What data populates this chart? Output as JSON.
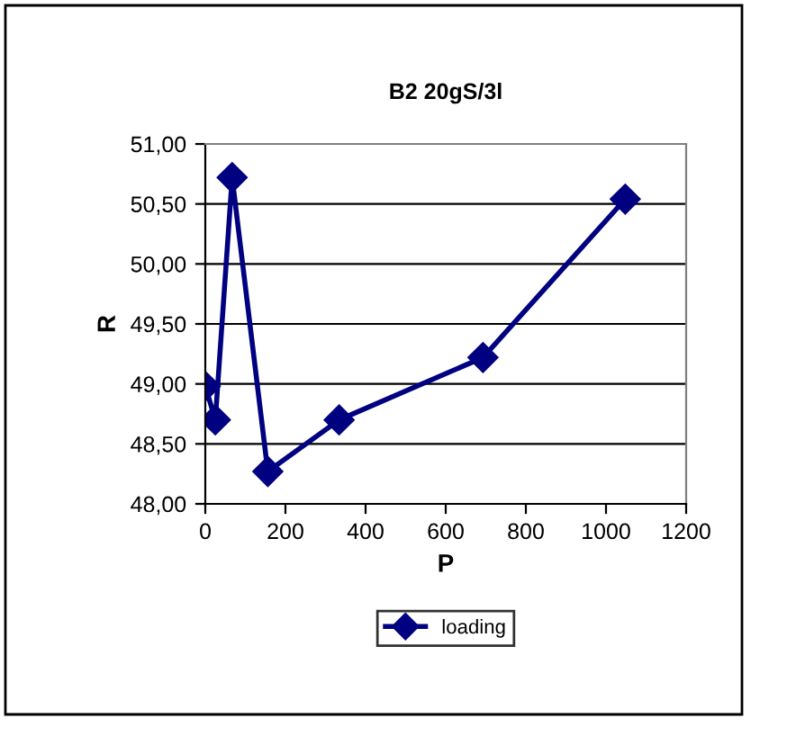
{
  "chart_data": {
    "type": "line",
    "title": "B2 20gS/3l",
    "xlabel": "P",
    "ylabel": "R",
    "series": [
      {
        "name": "loading",
        "color": "#000080",
        "x": [
          0,
          25,
          67,
          156,
          334,
          693,
          1048
        ],
        "values": [
          48.98,
          48.7,
          50.72,
          48.27,
          48.7,
          49.22,
          50.54
        ]
      }
    ],
    "xlim": [
      0,
      1200
    ],
    "xticks": [
      0,
      200,
      400,
      600,
      800,
      1000,
      1200
    ],
    "ylim": [
      48,
      51
    ],
    "yticks": [
      {
        "value": 48,
        "label": "48,00"
      },
      {
        "value": 48.5,
        "label": "48,50"
      },
      {
        "value": 49,
        "label": "49,00"
      },
      {
        "value": 49.5,
        "label": "49,50"
      },
      {
        "value": 50,
        "label": "50,00"
      },
      {
        "value": 50.5,
        "label": "50,50"
      },
      {
        "value": 51,
        "label": "51,00"
      }
    ],
    "grid": "y",
    "legend": "bottom",
    "marker": "diamond",
    "line_style": "solid"
  }
}
